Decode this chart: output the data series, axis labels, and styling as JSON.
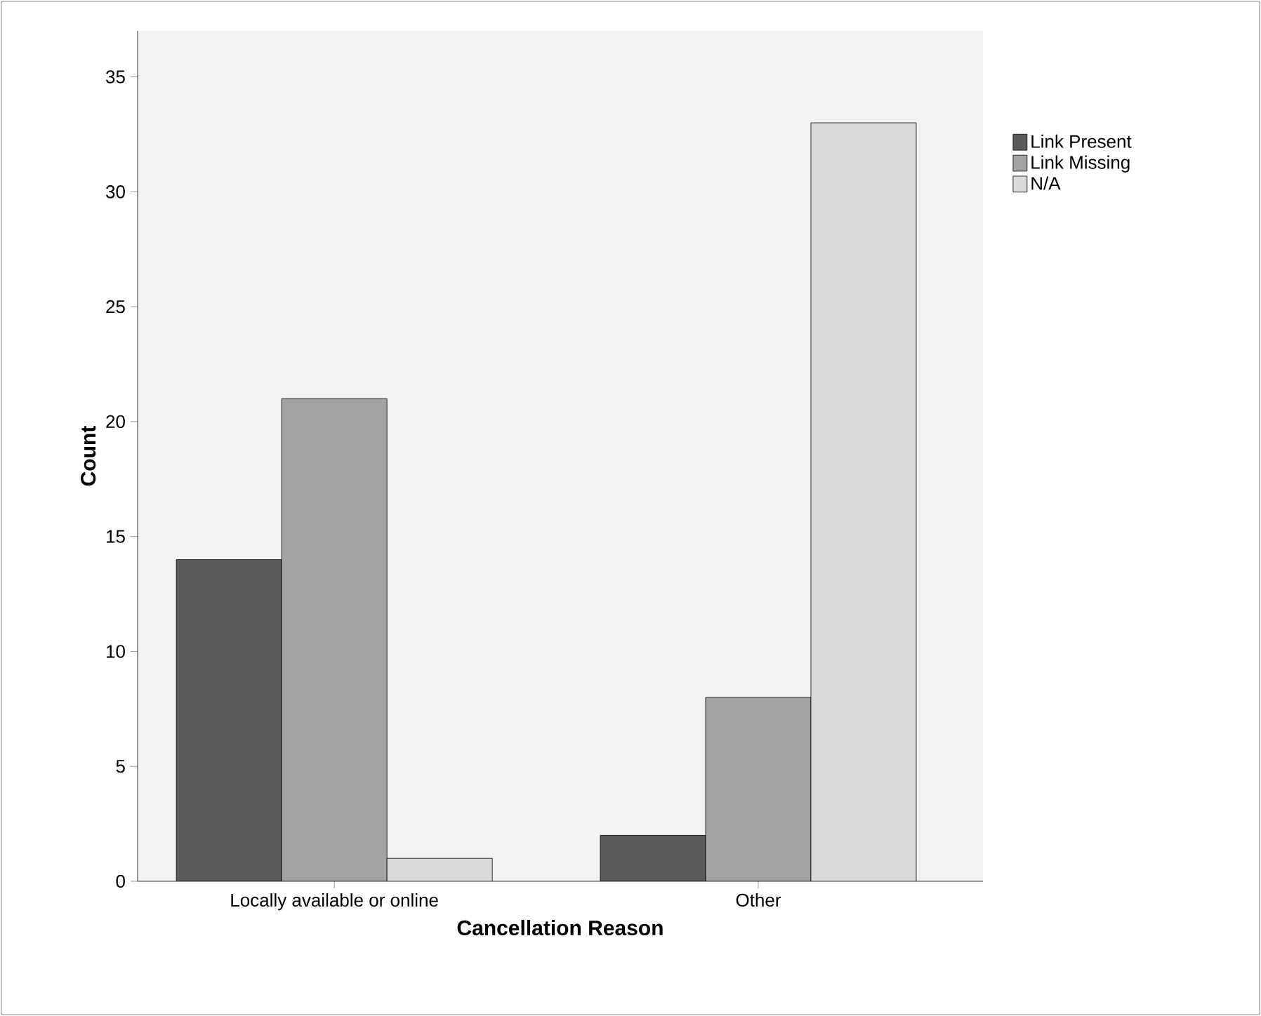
{
  "chart_data": {
    "type": "bar",
    "xlabel": "Cancellation Reason",
    "ylabel": "Count",
    "categories": [
      "Locally available or online",
      "Other"
    ],
    "series": [
      {
        "name": "Link Present",
        "color": "#5a5a5a",
        "values": [
          14,
          2
        ]
      },
      {
        "name": "Link Missing",
        "color": "#a3a3a3",
        "values": [
          21,
          8
        ]
      },
      {
        "name": "N/A",
        "color": "#dadada",
        "values": [
          1,
          33
        ]
      }
    ],
    "ylim": [
      0,
      37
    ],
    "yticks": [
      0,
      5,
      10,
      15,
      20,
      25,
      30,
      35
    ],
    "grid": false,
    "legend": "top right"
  }
}
